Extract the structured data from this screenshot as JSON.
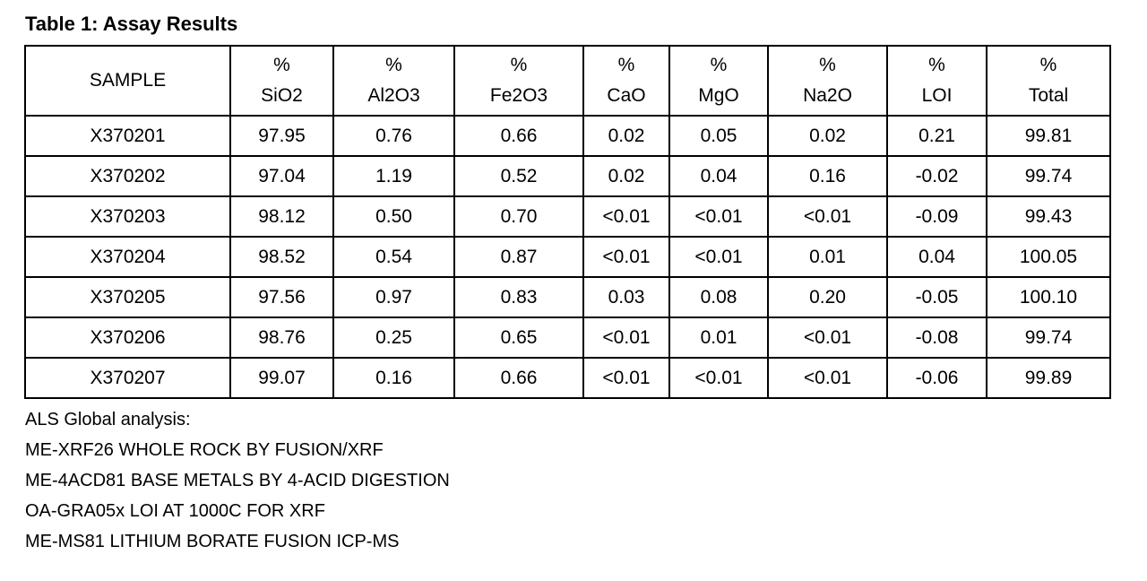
{
  "title": "Table 1: Assay Results",
  "table": {
    "columns": [
      [
        "SAMPLE"
      ],
      [
        "%",
        "SiO2"
      ],
      [
        "%",
        "Al2O3"
      ],
      [
        "%",
        "Fe2O3"
      ],
      [
        "%",
        "CaO"
      ],
      [
        "%",
        "MgO"
      ],
      [
        "%",
        "Na2O"
      ],
      [
        "%",
        "LOI"
      ],
      [
        "%",
        "Total"
      ]
    ],
    "rows": [
      [
        "X370201",
        "97.95",
        "0.76",
        "0.66",
        "0.02",
        "0.05",
        "0.02",
        "0.21",
        "99.81"
      ],
      [
        "X370202",
        "97.04",
        "1.19",
        "0.52",
        "0.02",
        "0.04",
        "0.16",
        "-0.02",
        "99.74"
      ],
      [
        "X370203",
        "98.12",
        "0.50",
        "0.70",
        "<0.01",
        "<0.01",
        "<0.01",
        "-0.09",
        "99.43"
      ],
      [
        "X370204",
        "98.52",
        "0.54",
        "0.87",
        "<0.01",
        "<0.01",
        "0.01",
        "0.04",
        "100.05"
      ],
      [
        "X370205",
        "97.56",
        "0.97",
        "0.83",
        "0.03",
        "0.08",
        "0.20",
        "-0.05",
        "100.10"
      ],
      [
        "X370206",
        "98.76",
        "0.25",
        "0.65",
        "<0.01",
        "0.01",
        "<0.01",
        "-0.08",
        "99.74"
      ],
      [
        "X370207",
        "99.07",
        "0.16",
        "0.66",
        "<0.01",
        "<0.01",
        "<0.01",
        "-0.06",
        "99.89"
      ]
    ]
  },
  "notes": [
    "ALS Global analysis:",
    "ME-XRF26 WHOLE ROCK BY FUSION/XRF",
    "ME-4ACD81 BASE METALS BY 4-ACID DIGESTION",
    "OA-GRA05x LOI AT 1000C FOR XRF",
    "ME-MS81 LITHIUM BORATE FUSION ICP-MS"
  ]
}
